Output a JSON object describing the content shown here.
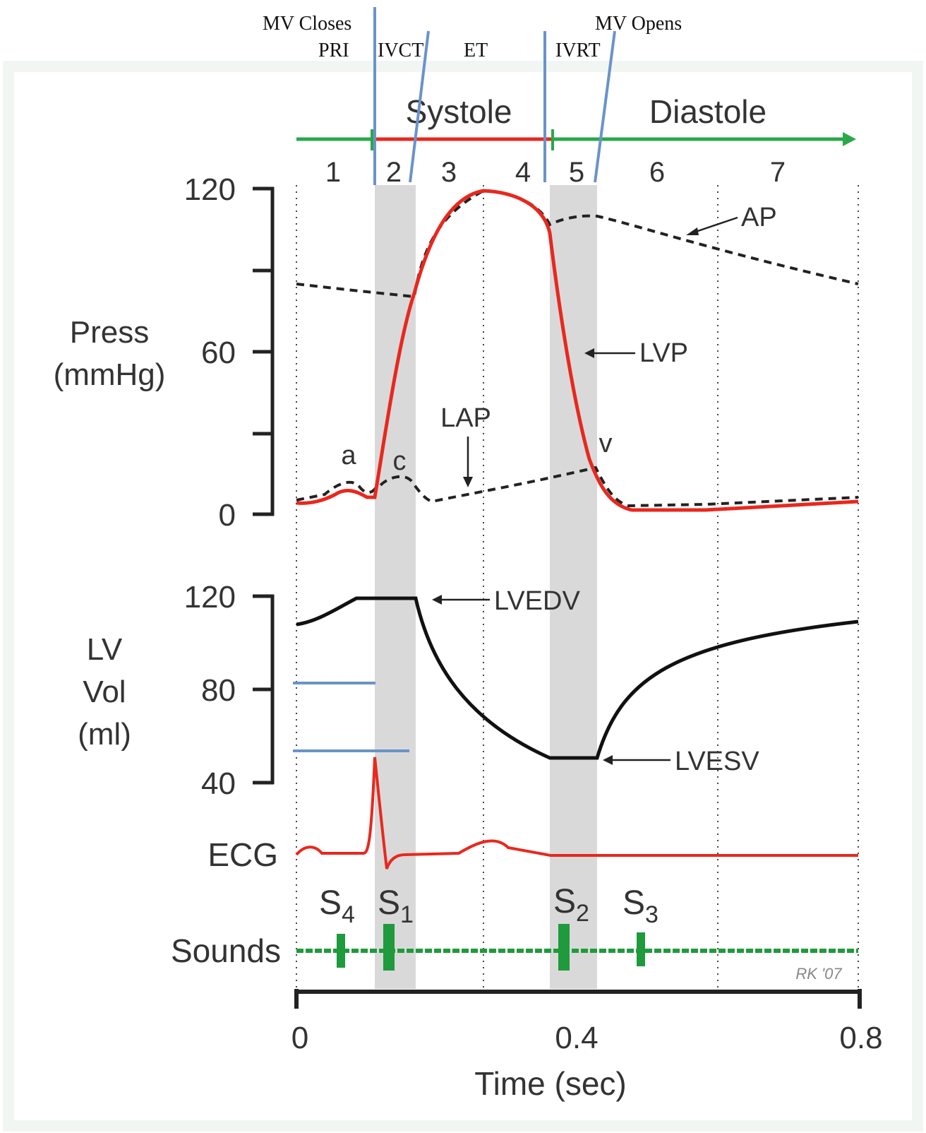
{
  "header_annotations": {
    "mv_closes": "MV Closes",
    "mv_opens": "MV Opens",
    "pri": "PRI",
    "ivct": "IVCT",
    "et": "ET",
    "ivrt": "IVRT"
  },
  "phase_bar": {
    "systole": "Systole",
    "diastole": "Diastole",
    "phases": [
      "1",
      "2",
      "3",
      "4",
      "5",
      "6",
      "7"
    ]
  },
  "pressure_panel": {
    "label_line1": "Press",
    "label_line2": "(mmHg)",
    "ticks": [
      "120",
      "60",
      "0"
    ],
    "curves": {
      "ap": "AP",
      "lvp": "LVP",
      "lap": "LAP",
      "wave_a": "a",
      "wave_c": "c",
      "wave_v": "v"
    }
  },
  "volume_panel": {
    "label_line1": "LV",
    "label_line2": "Vol",
    "label_line3": "(ml)",
    "ticks": [
      "120",
      "80",
      "40"
    ],
    "lvedv": "LVEDV",
    "lvesv": "LVESV"
  },
  "ecg_panel": {
    "label": "ECG"
  },
  "sounds_panel": {
    "label": "Sounds",
    "s4": "S",
    "s4_sub": "4",
    "s1": "S",
    "s1_sub": "1",
    "s2": "S",
    "s2_sub": "2",
    "s3": "S",
    "s3_sub": "3"
  },
  "x_axis": {
    "ticks": [
      "0",
      "0.4",
      "0.8"
    ],
    "label": "Time (sec)"
  },
  "signature": "RK '07",
  "colors": {
    "lvp_red": "#e8281e",
    "annotation_blue": "#6a93c8",
    "sounds_green": "#1f9a3c",
    "phase_green": "#2aa84a",
    "shade_gray": "#d9d9d9",
    "frame_tint": "#f1f6f3"
  }
}
